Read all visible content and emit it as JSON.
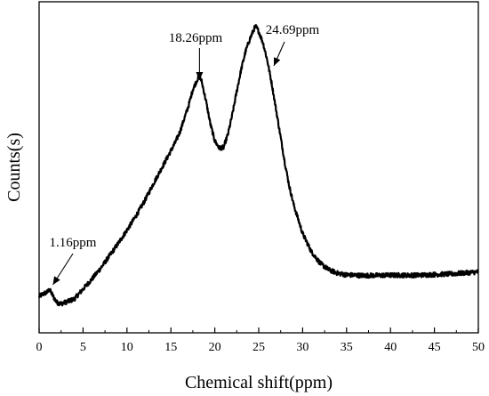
{
  "chart_data": {
    "type": "line",
    "xlabel": "Chemical shift(ppm)",
    "ylabel": "Counts(s)",
    "xlim": [
      0,
      50
    ],
    "ylim": [
      0,
      100
    ],
    "y_tick_labels_shown": false,
    "grid": false,
    "legend": "none",
    "x_ticks": [
      0,
      5,
      10,
      15,
      20,
      25,
      30,
      35,
      40,
      45,
      50
    ],
    "series": [
      {
        "x": [
          0,
          0.5,
          1.0,
          1.16,
          1.5,
          2.0,
          2.5,
          3.0,
          4.0,
          5.0,
          6.0,
          7.0,
          8.0,
          9.0,
          10.0,
          11.0,
          12.0,
          13.0,
          14.0,
          15.0,
          15.5,
          16.0,
          16.5,
          17.0,
          17.5,
          18.0,
          18.26,
          18.5,
          19.0,
          19.5,
          20.0,
          20.5,
          21.0,
          21.5,
          22.0,
          22.5,
          23.0,
          23.5,
          24.0,
          24.5,
          24.69,
          25.0,
          25.5,
          26.0,
          26.5,
          27.0,
          27.5,
          28.0,
          28.5,
          29.0,
          30.0,
          31.0,
          32.0,
          33.0,
          34.0,
          35.0,
          37.0,
          40.0,
          43.0,
          45.0,
          47.0,
          50.0
        ],
        "y": [
          11.0,
          11.8,
          12.4,
          13.2,
          11.5,
          9.2,
          8.8,
          9.2,
          10.2,
          13.2,
          16.2,
          19.5,
          23.2,
          27.0,
          31.0,
          35.2,
          39.8,
          45.0,
          50.0,
          55.0,
          57.5,
          60.5,
          64.5,
          68.5,
          73.5,
          76.5,
          77.5,
          76.0,
          70.0,
          63.0,
          58.0,
          55.8,
          56.0,
          60.0,
          66.0,
          73.0,
          79.5,
          85.0,
          88.8,
          92.0,
          92.5,
          91.0,
          87.5,
          82.0,
          75.0,
          67.0,
          59.0,
          51.0,
          44.0,
          38.5,
          30.0,
          24.5,
          21.0,
          19.0,
          18.0,
          17.5,
          17.3,
          17.4,
          17.4,
          17.6,
          17.8,
          18.4
        ]
      }
    ],
    "annotations": [
      {
        "text": "1.16ppm",
        "x": 1.16
      },
      {
        "text": "18.26ppm",
        "x": 18.26
      },
      {
        "text": "24.69ppm",
        "x": 24.69
      }
    ]
  }
}
